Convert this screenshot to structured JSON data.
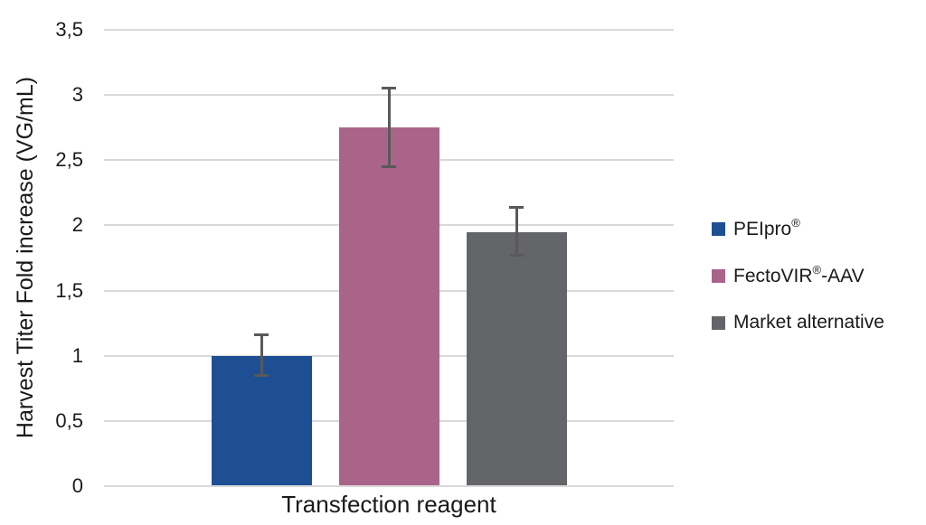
{
  "chart_data": {
    "type": "bar",
    "title": "",
    "xlabel": "Transfection reagent",
    "ylabel": "Harvest Titer Fold increase (VG/mL)",
    "ylim": [
      0,
      3.5
    ],
    "grid": true,
    "legend_position": "right",
    "decimal_separator": ",",
    "yticks": [
      {
        "label": "0",
        "value": 0
      },
      {
        "label": "0,5",
        "value": 0.5
      },
      {
        "label": "1",
        "value": 1
      },
      {
        "label": "1,5",
        "value": 1.5
      },
      {
        "label": "2",
        "value": 2
      },
      {
        "label": "2,5",
        "value": 2.5
      },
      {
        "label": "3",
        "value": 3
      },
      {
        "label": "3,5",
        "value": 3.5
      }
    ],
    "categories": [
      "Transfection reagent"
    ],
    "series": [
      {
        "name": "PEIpro®",
        "value": 1.0,
        "error_plus": 0.16,
        "error_minus": 0.15,
        "color": "#1E4F94"
      },
      {
        "name": "FectoVIR®-AAV",
        "value": 2.75,
        "error_plus": 0.3,
        "error_minus": 0.3,
        "color": "#AA6489"
      },
      {
        "name": "Market alternative",
        "value": 1.95,
        "error_plus": 0.19,
        "error_minus": 0.18,
        "color": "#636569"
      }
    ],
    "colors": {
      "error_bar": "#595959",
      "gridline": "#D9D9D9",
      "axis_line": "#D9D9D9",
      "text": "#1A1A1A",
      "background": "#FFFFFF"
    }
  }
}
